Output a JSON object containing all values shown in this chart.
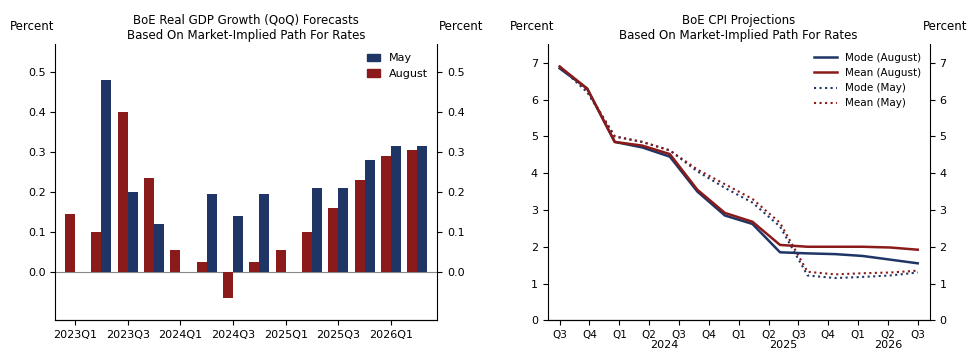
{
  "bar_title1": "BoE Real GDP Growth (QoQ) Forecasts",
  "bar_title2": "Based On Market-Implied Path For Rates",
  "bar_color_may": "#1f3566",
  "bar_color_aug": "#8b1a1a",
  "bar_ylim": [
    -0.12,
    0.57
  ],
  "bar_yticks": [
    0.0,
    0.1,
    0.2,
    0.3,
    0.4,
    0.5
  ],
  "bar_x_tick_labels": [
    "2023Q1",
    "2023Q3",
    "2024Q1",
    "2024Q3",
    "2025Q1",
    "2025Q3",
    "2026Q1"
  ],
  "bar_may_data": [
    0.0,
    0.48,
    0.2,
    0.12,
    0.0,
    0.195,
    0.14,
    0.195,
    0.0,
    0.21,
    0.21,
    0.28,
    0.315,
    0.315
  ],
  "bar_aug_data": [
    0.145,
    0.1,
    0.4,
    0.235,
    0.055,
    0.025,
    -0.065,
    0.025,
    0.055,
    0.1,
    0.16,
    0.23,
    0.29,
    0.305
  ],
  "bar_may_show": [
    false,
    true,
    true,
    true,
    false,
    true,
    true,
    true,
    false,
    true,
    true,
    true,
    true,
    true
  ],
  "cpi_title1": "BoE CPI Projections",
  "cpi_title2": "Based On Market-Implied Path For Rates",
  "cpi_color_mode_aug": "#1f3566",
  "cpi_color_mean_aug": "#8b1a1a",
  "cpi_color_mode_may": "#1f3566",
  "cpi_color_mean_may": "#8b1a1a",
  "cpi_mode_aug": [
    6.85,
    6.3,
    4.85,
    4.7,
    4.45,
    3.5,
    2.85,
    2.62,
    1.85,
    1.82,
    1.8,
    1.75,
    1.65,
    1.55
  ],
  "cpi_mean_aug": [
    6.9,
    6.3,
    4.85,
    4.75,
    4.52,
    3.55,
    2.92,
    2.68,
    2.05,
    2.0,
    2.0,
    2.0,
    1.98,
    1.92
  ],
  "cpi_mode_may": [
    6.9,
    6.2,
    5.0,
    4.85,
    4.62,
    4.05,
    3.6,
    3.2,
    2.55,
    1.22,
    1.15,
    1.18,
    1.22,
    1.3
  ],
  "cpi_mean_may": [
    6.9,
    6.25,
    5.0,
    4.85,
    4.62,
    4.1,
    3.7,
    3.3,
    2.65,
    1.32,
    1.25,
    1.28,
    1.3,
    1.35
  ],
  "cpi_x_tick_labels": [
    "Q3",
    "Q4",
    "Q1",
    "Q2",
    "Q3",
    "Q4",
    "Q1",
    "Q2",
    "Q3",
    "Q4",
    "Q1",
    "Q2",
    "Q3"
  ],
  "cpi_ylim": [
    0,
    7.5
  ],
  "cpi_yticks": [
    0,
    1,
    2,
    3,
    4,
    5,
    6,
    7
  ],
  "bg_color": "#ffffff",
  "ylabel_text": "Percent",
  "legend_may_label": "May",
  "legend_aug_label": "August",
  "legend_mode_aug": "Mode (August)",
  "legend_mean_aug": "Mean (August)",
  "legend_mode_may": "Mode (May)",
  "legend_mean_may": "Mean (May)"
}
